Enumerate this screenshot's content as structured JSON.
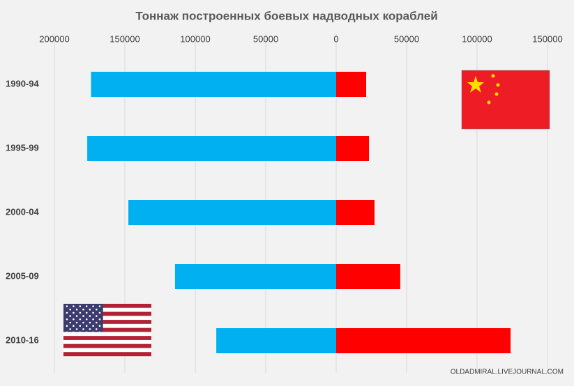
{
  "chart_data": {
    "type": "butterfly-bar",
    "title": "Тоннаж  построенных боевых надводных кораблей",
    "categories": [
      "1990-94",
      "1995-99",
      "2000-04",
      "2005-09",
      "2010-16"
    ],
    "series": [
      {
        "color": "#00b0f0",
        "values": [
          -174000,
          -176700,
          -147500,
          -114400,
          -85100
        ]
      },
      {
        "color": "#ff0000",
        "values": [
          21300,
          23300,
          27200,
          45500,
          123800
        ]
      }
    ],
    "xlim": [
      -200000,
      150000
    ],
    "xticks": [
      {
        "value": -200000,
        "label": "200000"
      },
      {
        "value": -150000,
        "label": "150000"
      },
      {
        "value": -100000,
        "label": "100000"
      },
      {
        "value": -50000,
        "label": "50000"
      },
      0,
      50000,
      100000,
      150000
    ],
    "grid": true,
    "source": "OLDADMIRAL.LIVEJOURNAL.COM"
  }
}
